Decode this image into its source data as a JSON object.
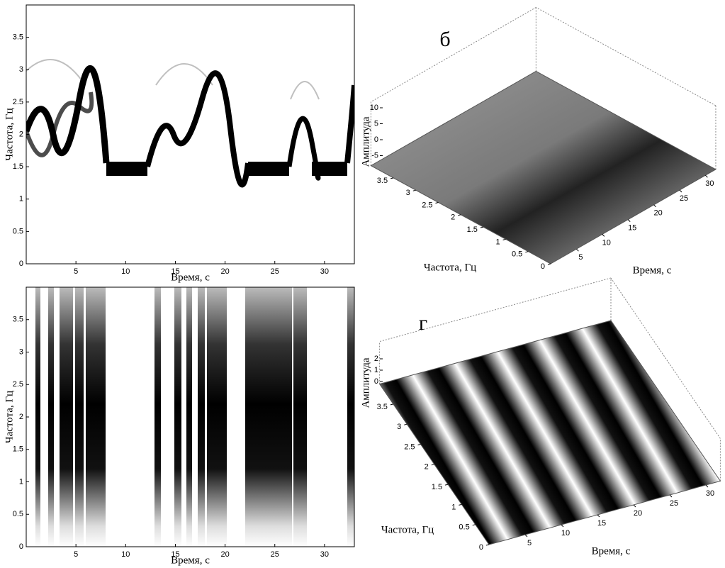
{
  "chart_data": [
    {
      "type": "heatmap",
      "xlabel": "Время, с",
      "ylabel": "Частота, Гц",
      "xlim": [
        0,
        33
      ],
      "xticks": [
        5,
        10,
        15,
        20,
        25,
        30
      ],
      "ylim": [
        0,
        4
      ],
      "yticks": [
        0,
        0.5,
        1,
        1.5,
        2,
        2.5,
        3,
        3.5
      ]
    },
    {
      "type": "surface3d",
      "panel": "б",
      "xlabel": "Время, с",
      "ylabel": "Частота, Гц",
      "zlabel": "Амплитуда",
      "xticks": [
        5,
        10,
        15,
        20,
        25,
        30
      ],
      "yticks": [
        0,
        0.5,
        1,
        1.5,
        2,
        2.5,
        3,
        3.5
      ],
      "zticks": [
        -5,
        0,
        5,
        10
      ]
    },
    {
      "type": "heatmap",
      "xlabel": "Время, с",
      "ylabel": "Частота, Гц",
      "xlim": [
        0,
        33
      ],
      "xticks": [
        5,
        10,
        15,
        20,
        25,
        30
      ],
      "ylim": [
        0,
        4
      ],
      "yticks": [
        0,
        0.5,
        1,
        1.5,
        2,
        2.5,
        3,
        3.5
      ]
    },
    {
      "type": "surface3d",
      "panel": "г",
      "xlabel": "Время, с",
      "ylabel": "Частота, Гц",
      "zlabel": "Амплитуда",
      "xticks": [
        5,
        10,
        15,
        20,
        25,
        30
      ],
      "yticks": [
        0,
        0.5,
        1,
        1.5,
        2,
        2.5,
        3,
        3.5
      ],
      "zticks": [
        0,
        1,
        2
      ]
    }
  ]
}
